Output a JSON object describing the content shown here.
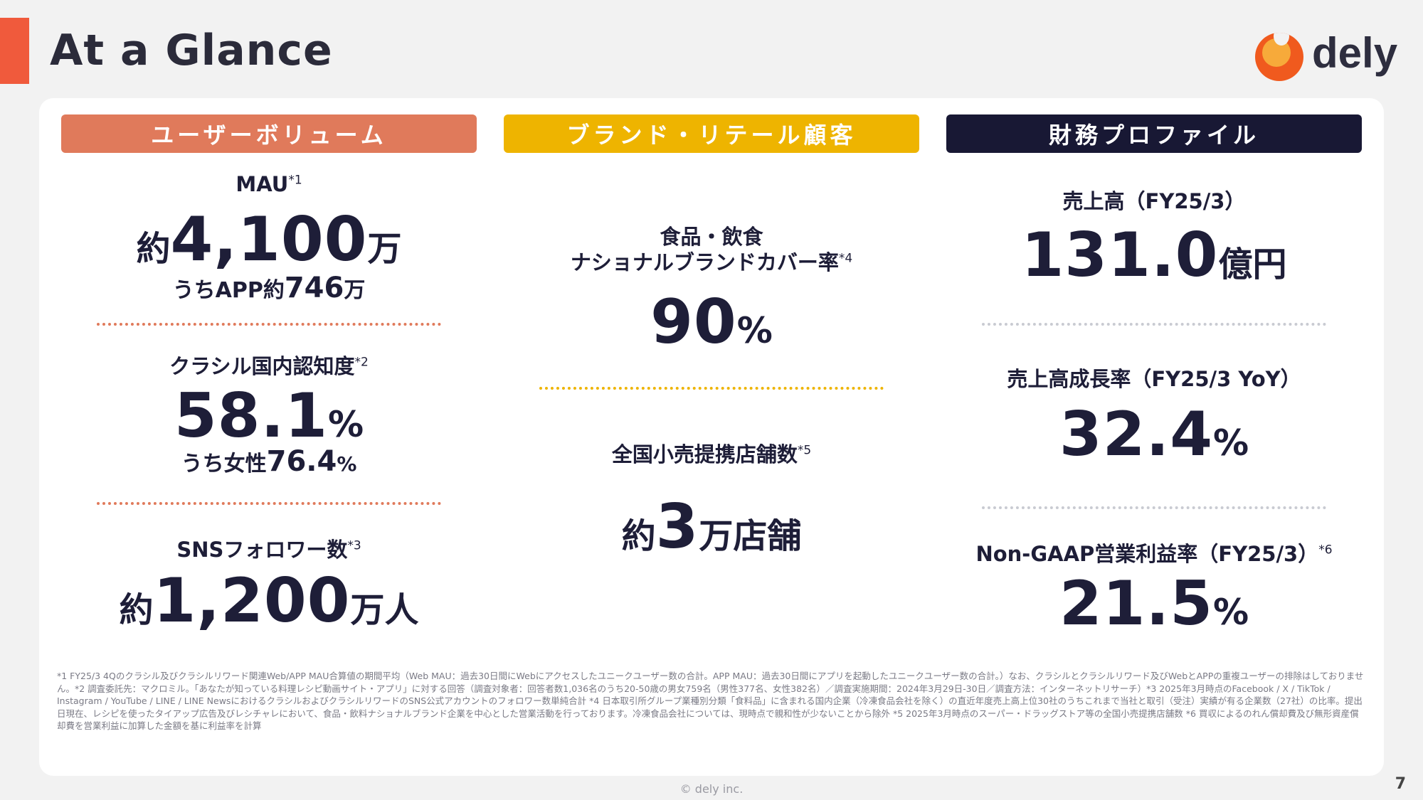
{
  "header": {
    "title": "At a Glance",
    "logo_text": "dely"
  },
  "columns": {
    "c1": "ユーザーボリューム",
    "c2": "ブランド・リテール顧客",
    "c3": "財務プロファイル"
  },
  "user_volume": {
    "mau": {
      "label": "MAU",
      "note": "*1",
      "prefix": "約",
      "value": "4,100",
      "unit": "万",
      "sub_text": "うちAPP約",
      "sub_value": "746",
      "sub_unit": "万"
    },
    "awareness": {
      "label": "クラシル国内認知度",
      "note": "*2",
      "value": "58.1",
      "unit": "%",
      "sub_text": "うち女性",
      "sub_value": "76.4",
      "sub_unit": "%"
    },
    "sns": {
      "label": "SNSフォロワー数",
      "note": "*3",
      "prefix": "約",
      "value": "1,200",
      "unit": "万人"
    }
  },
  "brand_retail": {
    "coverage": {
      "label_line1": "食品・飲食",
      "label_line2": "ナショナルブランドカバー率",
      "note": "*4",
      "value": "90",
      "unit": "%"
    },
    "stores": {
      "label": "全国小売提携店舗数",
      "note": "*5",
      "prefix": "約",
      "value": "3",
      "unit": "万店舗"
    }
  },
  "financial": {
    "revenue": {
      "label": "売上高（FY25/3）",
      "value": "131.0",
      "unit": "億円"
    },
    "growth": {
      "label": "売上高成長率（FY25/3 YoY）",
      "value": "32.4",
      "unit": "%"
    },
    "margin": {
      "label": "Non-GAAP営業利益率（FY25/3）",
      "note": "*6",
      "value": "21.5",
      "unit": "%"
    }
  },
  "footnote": "*1 FY25/3 4Qのクラシル及びクラシルリワード関連Web/APP MAU合算値の期間平均（Web MAU：過去30日間にWebにアクセスしたユニークユーザー数の合計。APP MAU：過去30日間にアプリを起動したユニークユーザー数の合計。）なお、クラシルとクラシルリワード及びWebとAPPの重複ユーザーの排除はしておりません。*2 調査委託先：マクロミル。「あなたが知っている料理レシピ動画サイト・アプリ」に対する回答（調査対象者：回答者数1,036名のうち20-50歳の男女759名（男性377名、女性382名）／調査実施期間：2024年3月29日-30日／調査方法：インターネットリサーチ）*3 2025年3月時点のFacebook / X / TikTok / Instagram / YouTube / LINE / LINE NewsにおけるクラシルおよびクラシルリワードのSNS公式アカウントのフォロワー数単純合計 *4 日本取引所グループ業種別分類「食料品」に含まれる国内企業（冷凍食品会社を除く）の直近年度売上高上位30社のうちこれまで当社と取引（受注）実績が有る企業数（27社）の比率。提出日現在、レシピを使ったタイアップ広告及びレシチャレにおいて、食品・飲料ナショナルブランド企業を中心とした営業活動を行っております。冷凍食品会社については、現時点で親和性が少ないことから除外 *5 2025年3月時点のスーパー・ドラッグストア等の全国小売提携店舗数 *6 買収によるのれん償却費及び無形資産償却費を営業利益に加算した金額を基に利益率を計算",
  "copyright": "© dely inc.",
  "page_number": "7",
  "colors": {
    "accent": "#f05a3c",
    "orange": "#e07a5b",
    "yellow": "#eeb400",
    "navy": "#181834",
    "text": "#1e1e38"
  }
}
